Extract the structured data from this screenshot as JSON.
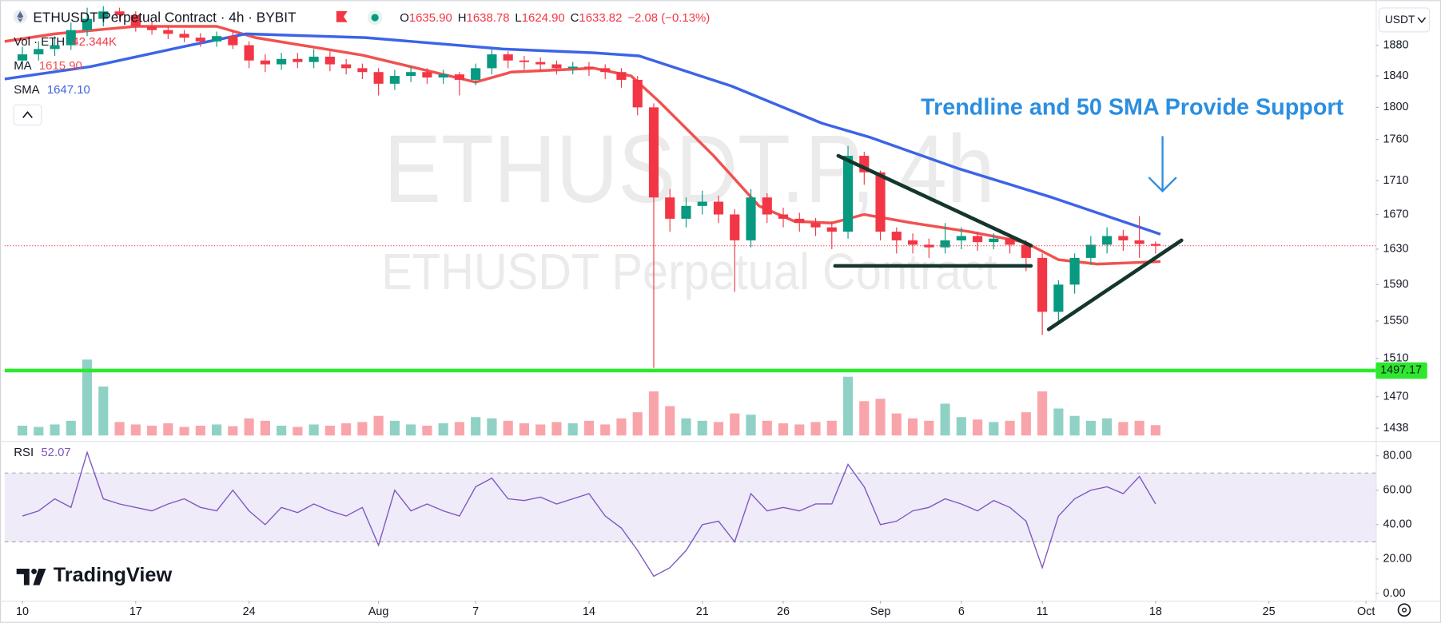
{
  "header": {
    "symbol": "ETHUSDT Perpetual Contract · 4h · BYBIT",
    "ohlc": [
      {
        "label": "O",
        "value": "1635.90"
      },
      {
        "label": "H",
        "value": "1638.78"
      },
      {
        "label": "L",
        "value": "1624.90"
      },
      {
        "label": "C",
        "value": "1633.82"
      }
    ],
    "change": "−2.08 (−0.13%)",
    "currency": "USDT"
  },
  "watermark": {
    "title": "ETHUSDT.P, 4h",
    "subtitle": "ETHUSDT Perpetual Contract"
  },
  "branding": "TradingView",
  "chart_data": [
    {
      "type": "candlestick",
      "x": [
        0,
        1,
        2,
        3,
        4,
        5,
        6,
        7,
        8,
        9,
        10,
        11,
        12,
        13,
        14,
        15,
        16,
        17,
        18,
        19,
        20,
        21,
        22,
        23,
        24,
        25,
        26,
        27,
        28,
        29,
        30,
        31,
        32,
        33,
        34,
        35,
        36,
        37,
        38,
        39,
        40,
        41,
        42,
        43,
        44,
        45,
        46,
        47,
        48,
        49,
        50,
        51,
        52,
        53,
        54,
        55,
        56,
        57,
        58,
        59,
        60,
        61,
        62,
        63,
        64,
        65,
        66,
        67,
        68,
        69,
        70
      ],
      "open": [
        1860,
        1868,
        1875,
        1880,
        1900,
        1915,
        1925,
        1920,
        1905,
        1900,
        1895,
        1890,
        1885,
        1892,
        1880,
        1860,
        1855,
        1862,
        1858,
        1865,
        1855,
        1850,
        1845,
        1830,
        1840,
        1845,
        1838,
        1842,
        1835,
        1850,
        1868,
        1860,
        1858,
        1855,
        1850,
        1852,
        1850,
        1845,
        1835,
        1800,
        1690,
        1665,
        1680,
        1685,
        1670,
        1640,
        1690,
        1670,
        1665,
        1660,
        1655,
        1650,
        1740,
        1720,
        1650,
        1640,
        1635,
        1632,
        1640,
        1645,
        1638,
        1642,
        1635,
        1620,
        1560,
        1590,
        1620,
        1635,
        1645,
        1640,
        1635.9
      ],
      "high": [
        1878,
        1885,
        1892,
        1910,
        1930,
        1932,
        1930,
        1925,
        1912,
        1905,
        1900,
        1896,
        1898,
        1900,
        1885,
        1868,
        1870,
        1870,
        1875,
        1872,
        1862,
        1856,
        1850,
        1848,
        1852,
        1850,
        1848,
        1845,
        1856,
        1875,
        1872,
        1866,
        1864,
        1860,
        1858,
        1858,
        1855,
        1850,
        1840,
        1805,
        1700,
        1690,
        1698,
        1692,
        1676,
        1700,
        1695,
        1678,
        1672,
        1666,
        1662,
        1752,
        1745,
        1722,
        1655,
        1648,
        1642,
        1660,
        1655,
        1650,
        1648,
        1646,
        1640,
        1625,
        1595,
        1625,
        1645,
        1655,
        1652,
        1668,
        1638.78
      ],
      "low": [
        1850,
        1860,
        1866,
        1874,
        1892,
        1905,
        1912,
        1898,
        1894,
        1888,
        1884,
        1878,
        1878,
        1875,
        1850,
        1845,
        1848,
        1850,
        1850,
        1846,
        1842,
        1836,
        1815,
        1822,
        1832,
        1830,
        1830,
        1815,
        1828,
        1842,
        1850,
        1848,
        1845,
        1842,
        1842,
        1840,
        1836,
        1825,
        1790,
        1500,
        1650,
        1655,
        1670,
        1660,
        1582,
        1632,
        1660,
        1655,
        1650,
        1645,
        1630,
        1642,
        1705,
        1640,
        1625,
        1625,
        1620,
        1625,
        1630,
        1628,
        1630,
        1625,
        1605,
        1535,
        1550,
        1580,
        1612,
        1625,
        1628,
        1620,
        1624.9
      ],
      "close": [
        1868,
        1875,
        1880,
        1900,
        1915,
        1925,
        1920,
        1905,
        1900,
        1895,
        1890,
        1885,
        1892,
        1880,
        1860,
        1855,
        1862,
        1858,
        1865,
        1855,
        1850,
        1845,
        1830,
        1840,
        1845,
        1838,
        1842,
        1835,
        1850,
        1868,
        1860,
        1858,
        1855,
        1850,
        1852,
        1850,
        1845,
        1835,
        1800,
        1690,
        1665,
        1680,
        1685,
        1670,
        1640,
        1690,
        1670,
        1665,
        1660,
        1655,
        1650,
        1740,
        1720,
        1650,
        1640,
        1635,
        1632,
        1640,
        1645,
        1638,
        1642,
        1635,
        1620,
        1560,
        1590,
        1620,
        1635,
        1645,
        1640,
        1635.9,
        1633.82
      ],
      "up_color": "#089981",
      "down_color": "#f23645",
      "xlim": [
        -1.1,
        83.6
      ],
      "xticks": [
        {
          "value": 0,
          "label": "10"
        },
        {
          "value": 7,
          "label": "17"
        },
        {
          "value": 14,
          "label": "24"
        },
        {
          "value": 22,
          "label": "Aug"
        },
        {
          "value": 28,
          "label": "7"
        },
        {
          "value": 35,
          "label": "14"
        },
        {
          "value": 42,
          "label": "21"
        },
        {
          "value": 47,
          "label": "26"
        },
        {
          "value": 53,
          "label": "Sep"
        },
        {
          "value": 58,
          "label": "6"
        },
        {
          "value": 63,
          "label": "11"
        },
        {
          "value": 70,
          "label": "18"
        },
        {
          "value": 77,
          "label": "25"
        },
        {
          "value": 83,
          "label": "Oct"
        }
      ],
      "ylim": [
        1427,
        1934
      ],
      "log_scale": true,
      "grid": false,
      "yticks": [
        1880,
        1840,
        1800,
        1760,
        1710,
        1670,
        1630,
        1590,
        1550,
        1510,
        1470,
        1438
      ],
      "volume": {
        "name": "Vol · ETH",
        "last_label": "42.344K",
        "lim": [
          0,
          600
        ],
        "values": [
          40,
          35,
          45,
          60,
          310,
          200,
          55,
          45,
          40,
          50,
          35,
          40,
          45,
          38,
          70,
          60,
          40,
          35,
          45,
          40,
          50,
          55,
          80,
          60,
          45,
          40,
          50,
          55,
          75,
          70,
          60,
          50,
          45,
          55,
          50,
          60,
          45,
          70,
          95,
          180,
          120,
          70,
          60,
          55,
          90,
          85,
          60,
          50,
          45,
          55,
          60,
          240,
          140,
          150,
          90,
          70,
          60,
          130,
          75,
          65,
          55,
          60,
          95,
          180,
          110,
          80,
          60,
          70,
          55,
          60,
          42.344
        ]
      },
      "lines": [
        {
          "name": "MA",
          "last_label": "1615.90",
          "color": "#f0524f",
          "x": [
            -1.1,
            2,
            7,
            12,
            14.4,
            21,
            28,
            30.2,
            35.3,
            37.6,
            39.3,
            42.7,
            45.5,
            47.7,
            50,
            52,
            55,
            58.5,
            61.9,
            64,
            66.4,
            70.3
          ],
          "values": [
            1885,
            1895,
            1905,
            1905,
            1890,
            1867,
            1832,
            1845,
            1850,
            1840,
            1808,
            1740,
            1680,
            1662,
            1660,
            1670,
            1660,
            1650,
            1638,
            1618,
            1613,
            1615.9
          ]
        },
        {
          "name": "SMA",
          "last_label": "1647.10",
          "color": "#3c64e6",
          "x": [
            -1.1,
            4.2,
            9.9,
            13.8,
            21.2,
            29.7,
            35.3,
            38.1,
            43.8,
            49.4,
            52.3,
            57.9,
            63.6,
            70.3
          ],
          "values": [
            1836,
            1852,
            1878,
            1895,
            1890,
            1875,
            1870,
            1866,
            1827,
            1780,
            1763,
            1724,
            1690,
            1647.1
          ]
        }
      ],
      "hlines": [
        {
          "value": 1497.17,
          "color": "#2ee82e"
        }
      ],
      "trendlines": [
        {
          "x": [
            50.4,
            62.3
          ],
          "values": [
            1740,
            1634
          ]
        },
        {
          "x": [
            50.2,
            62.3
          ],
          "values": [
            1611,
            1611
          ]
        },
        {
          "x": [
            63.4,
            71.6
          ],
          "values": [
            1541,
            1640
          ]
        }
      ],
      "trendline_color": "#14362d",
      "annotation": {
        "text": "Trendline and 50 SMA Provide Support",
        "color": "#2b8ee0"
      }
    },
    {
      "type": "line",
      "x": [
        0,
        1,
        2,
        3,
        4,
        5,
        6,
        7,
        8,
        9,
        10,
        11,
        12,
        13,
        14,
        15,
        16,
        17,
        18,
        19,
        20,
        21,
        22,
        23,
        24,
        25,
        26,
        27,
        28,
        29,
        30,
        31,
        32,
        33,
        34,
        35,
        36,
        37,
        38,
        39,
        40,
        41,
        42,
        43,
        44,
        45,
        46,
        47,
        48,
        49,
        50,
        51,
        52,
        53,
        54,
        55,
        56,
        57,
        58,
        59,
        60,
        61,
        62,
        63,
        64,
        65,
        66,
        67,
        68,
        69,
        70
      ],
      "series": [
        {
          "name": "RSI",
          "color": "#7e57c2",
          "values": [
            45,
            48,
            55,
            50,
            82,
            55,
            52,
            50,
            48,
            52,
            55,
            50,
            48,
            60,
            48,
            40,
            50,
            47,
            52,
            48,
            45,
            50,
            28,
            60,
            48,
            52,
            48,
            45,
            62,
            67,
            55,
            54,
            56,
            52,
            55,
            58,
            45,
            38,
            25,
            10,
            15,
            25,
            40,
            42,
            30,
            58,
            48,
            50,
            48,
            52,
            52,
            75,
            62,
            40,
            42,
            48,
            50,
            55,
            52,
            48,
            54,
            50,
            42,
            15,
            45,
            55,
            60,
            62,
            58,
            68,
            52.07
          ]
        }
      ],
      "band": [
        30,
        70
      ],
      "xlim": [
        -1.1,
        83.6
      ],
      "ylim": [
        -3.2,
        87
      ],
      "yticks": [
        {
          "value": 80,
          "label": "80.00"
        },
        {
          "value": 60,
          "label": "60.00"
        },
        {
          "value": 40,
          "label": "40.00"
        },
        {
          "value": 20,
          "label": "20.00"
        },
        {
          "value": 0,
          "label": "0.00"
        }
      ]
    }
  ]
}
